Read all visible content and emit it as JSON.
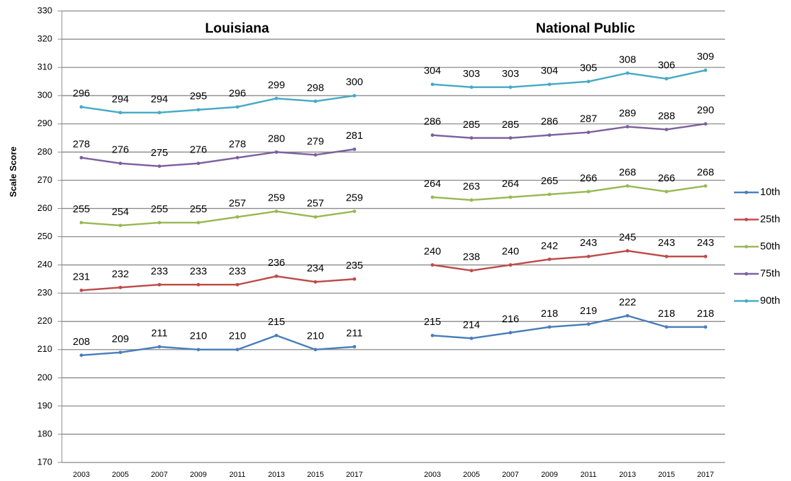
{
  "chart_data": {
    "type": "line",
    "annotations": [
      "Louisiana",
      "National Public"
    ],
    "y_label": "Scale Score",
    "categories": [
      "2003",
      "2005",
      "2007",
      "2009",
      "2011",
      "2013",
      "2015",
      "2017",
      null,
      "2003",
      "2005",
      "2007",
      "2009",
      "2011",
      "2013",
      "2015",
      "2017"
    ],
    "series": [
      {
        "name": "10th",
        "color": "#4a7ebb",
        "values": [
          208,
          209,
          211,
          210,
          210,
          215,
          210,
          211,
          null,
          215,
          214,
          216,
          218,
          219,
          222,
          218,
          218
        ]
      },
      {
        "name": "25th",
        "color": "#be4b48",
        "values": [
          231,
          232,
          233,
          233,
          233,
          236,
          234,
          235,
          null,
          240,
          238,
          240,
          242,
          243,
          245,
          243,
          243
        ]
      },
      {
        "name": "50th",
        "color": "#98b954",
        "values": [
          255,
          254,
          255,
          255,
          257,
          259,
          257,
          259,
          null,
          264,
          263,
          264,
          265,
          266,
          268,
          266,
          268
        ]
      },
      {
        "name": "75th",
        "color": "#7d60a0",
        "values": [
          278,
          276,
          275,
          276,
          278,
          280,
          279,
          281,
          null,
          286,
          285,
          285,
          286,
          287,
          289,
          288,
          290
        ]
      },
      {
        "name": "90th",
        "color": "#46aac5",
        "values": [
          296,
          294,
          294,
          295,
          296,
          299,
          298,
          300,
          null,
          304,
          303,
          303,
          304,
          305,
          308,
          306,
          309
        ]
      }
    ],
    "ylim": [
      170,
      330
    ],
    "yticks": [
      170,
      180,
      190,
      200,
      210,
      220,
      230,
      240,
      250,
      260,
      270,
      280,
      290,
      300,
      310,
      320,
      330
    ],
    "grid": true,
    "legend": "right"
  }
}
